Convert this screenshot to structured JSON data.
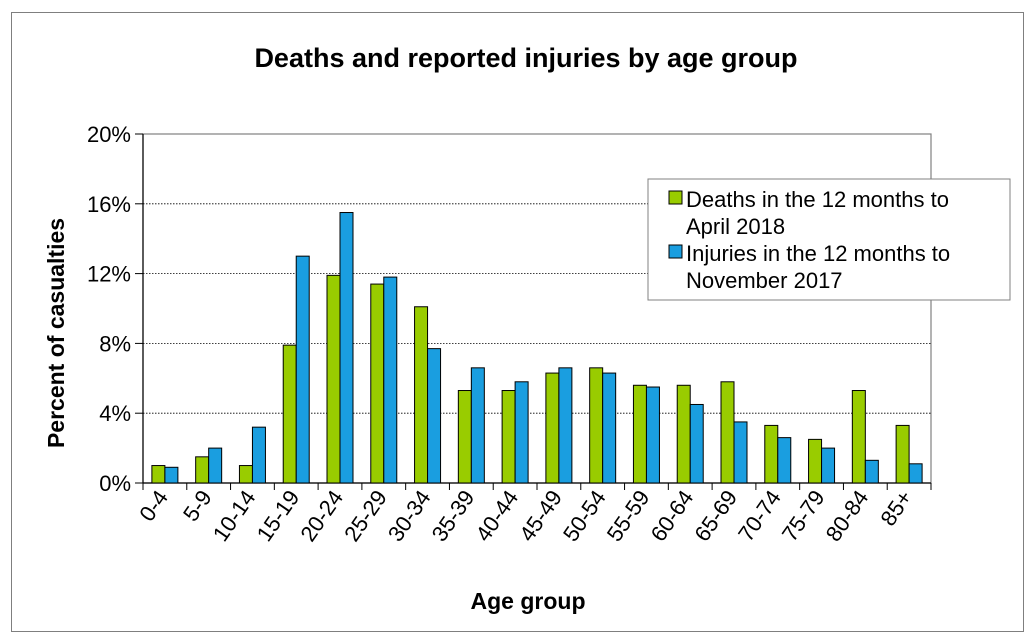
{
  "chart_data": {
    "type": "bar",
    "title": "Deaths and reported injuries by age group",
    "xlabel": "Age group",
    "ylabel": "Percent of casualties",
    "categories": [
      "0-4",
      "5-9",
      "10-14",
      "15-19",
      "20-24",
      "25-29",
      "30-34",
      "35-39",
      "40-44",
      "45-49",
      "50-54",
      "55-59",
      "60-64",
      "65-69",
      "70-74",
      "75-79",
      "80-84",
      "85+"
    ],
    "ylim": [
      0,
      20
    ],
    "yticks": [
      0,
      4,
      8,
      12,
      16,
      20
    ],
    "ytick_labels": [
      "0%",
      "4%",
      "8%",
      "12%",
      "16%",
      "20%"
    ],
    "grid": true,
    "legend_position": "top-right",
    "series": [
      {
        "name": "Deaths in the 12 months to April 2018",
        "legend_lines": [
          "Deaths in the 12 months to",
          "April 2018"
        ],
        "color": "#99cc00",
        "values": [
          1.0,
          1.5,
          1.0,
          7.9,
          11.9,
          11.4,
          10.1,
          5.3,
          5.3,
          6.3,
          6.6,
          5.6,
          5.6,
          5.8,
          3.3,
          2.5,
          5.3,
          3.3
        ]
      },
      {
        "name": "Injuries in the 12 months to November 2017",
        "legend_lines": [
          "Injuries in the 12 months to",
          "November 2017"
        ],
        "color": "#1a9ee0",
        "values": [
          0.9,
          2.0,
          3.2,
          13.0,
          15.5,
          11.8,
          7.7,
          6.6,
          5.8,
          6.6,
          6.3,
          5.5,
          4.5,
          3.5,
          2.6,
          2.0,
          1.3,
          1.1
        ]
      }
    ]
  }
}
